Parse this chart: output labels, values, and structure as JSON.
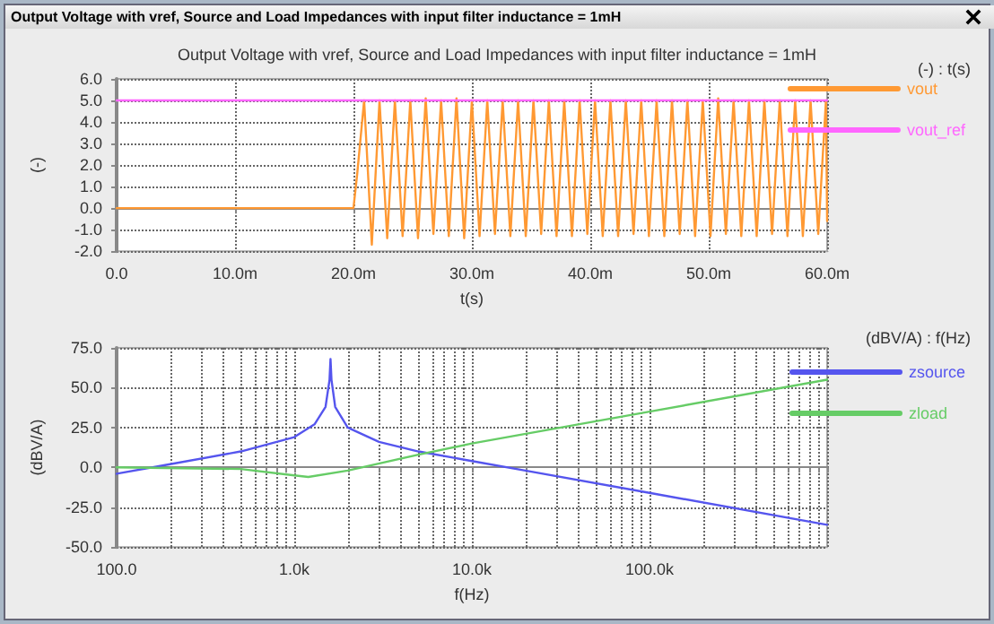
{
  "chart_data": [
    {
      "type": "line",
      "title": "Output Voltage with vref, Source and Load Impedances with input filter inductance = 1mH",
      "annotations": [
        "Output Voltage with vref, Source and Load Impedances with input filter inductance = 1mH"
      ],
      "xlabel": "t(s)",
      "ylabel": "(-)",
      "legend_title": "(-) : t(s)",
      "xlim": [
        0,
        60
      ],
      "ylim": [
        -2,
        6
      ],
      "xticks": [
        {
          "value": 0,
          "label": "0.0"
        },
        {
          "value": 10,
          "label": "10.0m"
        },
        {
          "value": 20,
          "label": "20.0m"
        },
        {
          "value": 30,
          "label": "30.0m"
        },
        {
          "value": 40,
          "label": "40.0m"
        },
        {
          "value": 50,
          "label": "50.0m"
        },
        {
          "value": 60,
          "label": "60.0m"
        }
      ],
      "yticks": [
        {
          "value": -2,
          "label": "-2.0"
        },
        {
          "value": -1,
          "label": "-1.0"
        },
        {
          "value": 0,
          "label": "0.0"
        },
        {
          "value": 1,
          "label": "1.0"
        },
        {
          "value": 2,
          "label": "2.0"
        },
        {
          "value": 3,
          "label": "3.0"
        },
        {
          "value": 4,
          "label": "4.0"
        },
        {
          "value": 5,
          "label": "5.0"
        },
        {
          "value": 6,
          "label": "6.0"
        }
      ],
      "grid": true,
      "legend": "right",
      "marker": "none",
      "line_style": "solid",
      "series": [
        {
          "name": "vout",
          "color": "#ff9933",
          "x": [
            0,
            20,
            20.3,
            20.9,
            21.55,
            22.2,
            22.85,
            23.5,
            24.15,
            24.8,
            25.45,
            26.1,
            26.75,
            27.4,
            28.05,
            28.7,
            29.35,
            30,
            30.65,
            31.3,
            31.95,
            32.6,
            33.25,
            33.9,
            34.55,
            35.2,
            35.85,
            36.5,
            37.15,
            37.8,
            38.45,
            39.1,
            39.75,
            40.4,
            41.05,
            41.7,
            42.35,
            43,
            43.65,
            44.3,
            44.95,
            45.6,
            46.25,
            46.9,
            47.55,
            48.2,
            48.85,
            49.5,
            50.15,
            50.8,
            51.45,
            52.1,
            52.75,
            53.4,
            54.05,
            54.7,
            55.35,
            56,
            56.65,
            57.3,
            57.95,
            58.6,
            59.25,
            59.9,
            60
          ],
          "values": [
            0,
            0,
            1.5,
            5,
            -1.7,
            5,
            -1.4,
            5,
            -1.3,
            5,
            -1.4,
            5.1,
            -1.2,
            5,
            -1.3,
            5.1,
            -1.4,
            5,
            -1.3,
            5,
            -1.2,
            5,
            -1.3,
            5,
            -1.3,
            5,
            -1.2,
            5,
            -1.3,
            5,
            -1.3,
            5,
            -1.2,
            5,
            -1.3,
            5,
            -1.3,
            5,
            -1.2,
            5,
            -1.3,
            5,
            -1.3,
            5,
            -1.2,
            5,
            -1.3,
            5,
            -1.3,
            5.1,
            -1.2,
            5,
            -1.3,
            5,
            -1.3,
            5,
            -1.2,
            5,
            -1.3,
            5,
            -1.3,
            5,
            -1.2,
            5,
            -0.6
          ]
        },
        {
          "name": "vout_ref",
          "color": "#ff66ff",
          "x": [
            0,
            60
          ],
          "values": [
            5,
            5
          ]
        }
      ]
    },
    {
      "type": "line",
      "xlabel": "f(Hz)",
      "ylabel": "(dBV/A)",
      "legend_title": "(dBV/A) : f(Hz)",
      "log": "x",
      "xlim": [
        100,
        1000000
      ],
      "ylim": [
        -50,
        75
      ],
      "xticks": [
        {
          "value": 100,
          "label": "100.0"
        },
        {
          "value": 200,
          "label": null
        },
        {
          "value": 300,
          "label": null
        },
        {
          "value": 400,
          "label": null
        },
        {
          "value": 500,
          "label": null
        },
        {
          "value": 600,
          "label": null
        },
        {
          "value": 700,
          "label": null
        },
        {
          "value": 800,
          "label": null
        },
        {
          "value": 900,
          "label": null
        },
        {
          "value": 1000,
          "label": "1.0k"
        },
        {
          "value": 2000,
          "label": null
        },
        {
          "value": 3000,
          "label": null
        },
        {
          "value": 4000,
          "label": null
        },
        {
          "value": 5000,
          "label": null
        },
        {
          "value": 6000,
          "label": null
        },
        {
          "value": 7000,
          "label": null
        },
        {
          "value": 8000,
          "label": null
        },
        {
          "value": 9000,
          "label": null
        },
        {
          "value": 10000,
          "label": "10.0k"
        },
        {
          "value": 20000,
          "label": null
        },
        {
          "value": 30000,
          "label": null
        },
        {
          "value": 40000,
          "label": null
        },
        {
          "value": 50000,
          "label": null
        },
        {
          "value": 60000,
          "label": null
        },
        {
          "value": 70000,
          "label": null
        },
        {
          "value": 80000,
          "label": null
        },
        {
          "value": 90000,
          "label": null
        },
        {
          "value": 100000,
          "label": "100.0k"
        },
        {
          "value": 200000,
          "label": null
        },
        {
          "value": 300000,
          "label": null
        },
        {
          "value": 400000,
          "label": null
        },
        {
          "value": 500000,
          "label": null
        },
        {
          "value": 600000,
          "label": null
        },
        {
          "value": 700000,
          "label": null
        },
        {
          "value": 800000,
          "label": null
        },
        {
          "value": 900000,
          "label": null
        },
        {
          "value": 1000000,
          "label": null
        }
      ],
      "yticks": [
        {
          "value": -50,
          "label": "-50.0"
        },
        {
          "value": -25,
          "label": "-25.0"
        },
        {
          "value": 0,
          "label": "0.0"
        },
        {
          "value": 25,
          "label": "25.0"
        },
        {
          "value": 50,
          "label": "50.0"
        },
        {
          "value": 75,
          "label": "75.0"
        }
      ],
      "grid": true,
      "legend": "right",
      "marker": "none",
      "line_style": "solid",
      "series": [
        {
          "name": "zsource",
          "color": "#5555ee",
          "x": [
            100,
            200,
            500,
            1000,
            1300,
            1500,
            1580,
            1600,
            1620,
            1700,
            2000,
            3000,
            5000,
            10000,
            20000,
            100000,
            1000000
          ],
          "values": [
            -4,
            2,
            10,
            19,
            27,
            38,
            55,
            68,
            55,
            38,
            25,
            16,
            10,
            4,
            -2,
            -16,
            -36
          ]
        },
        {
          "name": "zload",
          "color": "#66cc66",
          "x": [
            100,
            500,
            1000,
            1200,
            2000,
            5000,
            10000,
            100000,
            1000000
          ],
          "values": [
            0,
            -1,
            -5,
            -6,
            -2,
            8,
            15,
            35,
            55
          ]
        }
      ]
    }
  ]
}
